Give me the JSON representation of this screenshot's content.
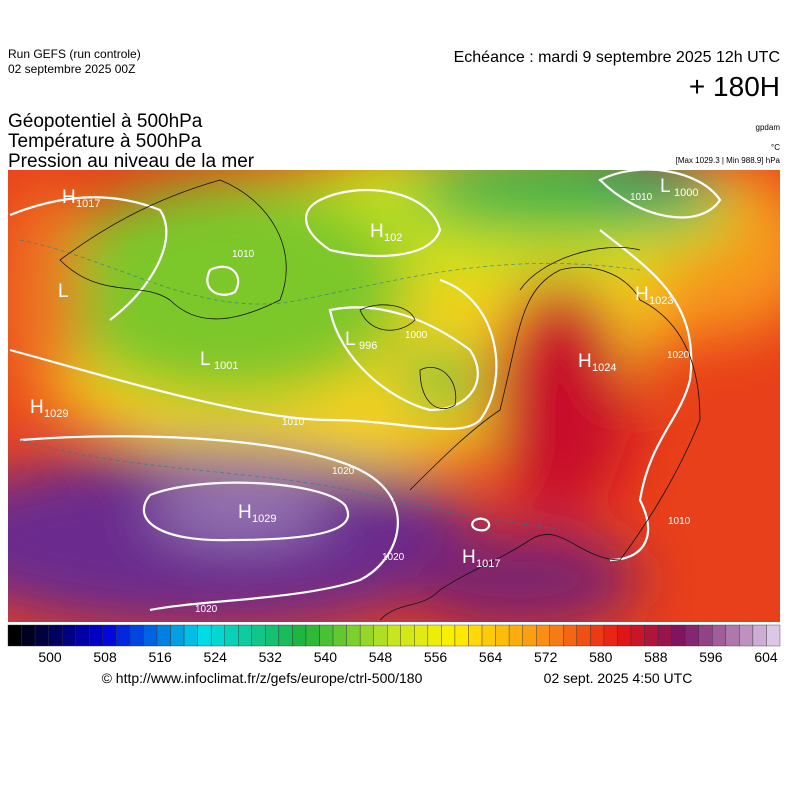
{
  "header": {
    "run": "Run GEFS (run controle)",
    "run_date": "02 septembre 2025 00Z",
    "echeance": "Echéance : mardi 9 septembre 2025 12h UTC",
    "lead": "+ 180H"
  },
  "fields": [
    "Géopotentiel à 500hPa",
    "Température à 500hPa",
    "Pression au niveau de la mer"
  ],
  "units": {
    "geopotential": "gpdam",
    "temperature": "°C",
    "pressure": "[Max 1029.3 | Min 988.9] hPa"
  },
  "pressure_centers": [
    {
      "type": "H",
      "value": "1017"
    },
    {
      "type": "H",
      "value": "102"
    },
    {
      "type": "L",
      "value": ""
    },
    {
      "type": "L",
      "value": "1001"
    },
    {
      "type": "L",
      "value": "996"
    },
    {
      "type": "H",
      "value": "1029"
    },
    {
      "type": "H",
      "value": "1029"
    },
    {
      "type": "H",
      "value": "1017"
    },
    {
      "type": "H",
      "value": "1023"
    },
    {
      "type": "H",
      "value": "1024"
    },
    {
      "type": "L",
      "value": "1000"
    }
  ],
  "isobar_labels": [
    "1020",
    "1010",
    "1020",
    "1020",
    "1000",
    "1010",
    "1010",
    "1020",
    "1010"
  ],
  "colorbar": {
    "ticks": [
      500,
      508,
      516,
      524,
      532,
      540,
      548,
      556,
      564,
      572,
      580,
      588,
      596,
      604
    ]
  },
  "footer": {
    "url": "© http://www.infoclimat.fr/z/gefs/europe/ctrl-500/180",
    "issued": "02 sept. 2025  4:50 UTC"
  }
}
